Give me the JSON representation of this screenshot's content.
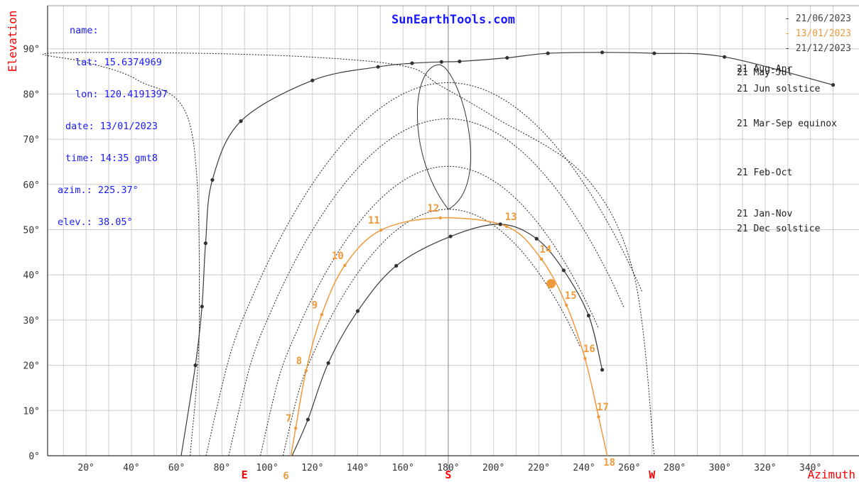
{
  "site": "SunEarthTools.com",
  "info": {
    "name_label": "name:",
    "lat": "lat: 15.6374969",
    "lon": "lon: 120.4191397",
    "date": "date: 13/01/2023",
    "time": "time: 14:35 gmt8",
    "azim": "azim.: 225.37°",
    "elev": "elev.: 38.05°"
  },
  "legend": [
    {
      "text": "- 21/06/2023",
      "color": "#444444"
    },
    {
      "text": "- 13/01/2023",
      "color": "#ee9a3c"
    },
    {
      "text": "- 21/12/2023",
      "color": "#444444"
    }
  ],
  "colors": {
    "axis_label": "#ff0000",
    "grid": "#cccccc",
    "curve": "#3a3a3a",
    "highlight": "#ee9a3c",
    "info": "#1a1aff"
  },
  "chart_data": {
    "type": "line",
    "xlabel": "Azimuth",
    "ylabel": "Elevation",
    "xlim": [
      0,
      360
    ],
    "ylim": [
      0,
      90
    ],
    "x_ticks": [
      "20°",
      "40°",
      "60°",
      "80°",
      "100°",
      "120°",
      "140°",
      "160°",
      "180°",
      "200°",
      "220°",
      "240°",
      "260°",
      "280°",
      "300°",
      "320°",
      "340°"
    ],
    "y_ticks": [
      "0°",
      "10°",
      "20°",
      "30°",
      "40°",
      "50°",
      "60°",
      "70°",
      "80°",
      "90°"
    ],
    "cardinals": [
      {
        "label": "E",
        "azimuth": 90
      },
      {
        "label": "S",
        "azimuth": 180
      },
      {
        "label": "W",
        "azimuth": 270
      }
    ],
    "month_labels": [
      {
        "text": "21 Aug-Apr",
        "elevation": 88
      },
      {
        "text": "21 May-Jul",
        "elevation": 88
      },
      {
        "text": "21 Jun  solstice",
        "elevation": 84
      },
      {
        "text": "21 Mar-Sep equinox",
        "elevation": 74
      },
      {
        "text": "21 Feb-Oct",
        "elevation": 63
      },
      {
        "text": "21 Jan-Nov",
        "elevation": 54
      },
      {
        "text": "21 Dec  solstice",
        "elevation": 50
      }
    ],
    "series": [
      {
        "name": "21/12/2023",
        "style": "solid",
        "x": [
          111,
          118,
          127,
          140,
          157,
          181,
          203,
          219,
          231,
          242,
          248
        ],
        "y": [
          0,
          8,
          20.5,
          32,
          42,
          48.5,
          51.2,
          48,
          41,
          31,
          19
        ]
      },
      {
        "name": "13/01/2023",
        "style": "highlight",
        "x": [
          110.5,
          112.6,
          117.2,
          124.1,
          134.3,
          150.3,
          176.5,
          205.8,
          221.1,
          232.2,
          240.4,
          246.4,
          250.2
        ],
        "y": [
          0,
          6.1,
          18.8,
          31.2,
          42.1,
          49.9,
          52.6,
          50.7,
          43.5,
          33.3,
          21.5,
          8.6,
          0
        ],
        "hour_labels": [
          "7",
          "8",
          "9",
          "10",
          "11",
          "12",
          "13",
          "14",
          "15",
          "16",
          "17"
        ]
      },
      {
        "name": "21/06/2023",
        "style": "solid",
        "x": [
          62,
          68.3,
          71.2,
          72.8,
          75.8,
          88.4,
          120,
          149,
          164,
          177,
          185,
          206,
          224,
          248,
          271,
          302,
          350
        ],
        "y": [
          0,
          20,
          33,
          47,
          61,
          74,
          83,
          86,
          86.8,
          87.1,
          87.2,
          88,
          89,
          89.2,
          89,
          88.2,
          82
        ]
      }
    ],
    "current_sun": {
      "azimuth": 225.37,
      "elevation": 38.05
    }
  }
}
